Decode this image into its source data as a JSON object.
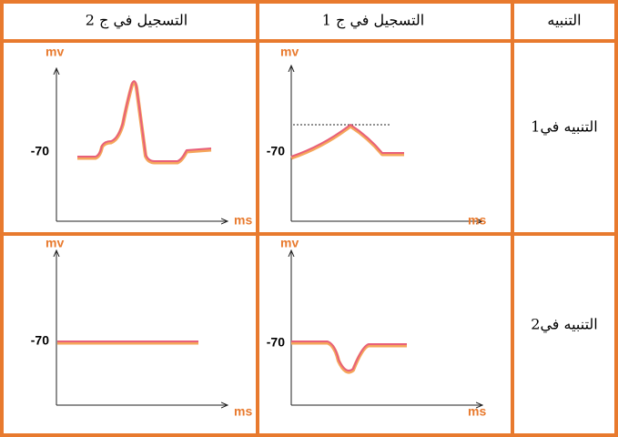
{
  "header": [
    "التسجيل في ج 2",
    "التسجيل في ج 1",
    "التنبيه"
  ],
  "rows": [
    {
      "label": "التنبيه في1",
      "graphs": [
        {
          "y_label": "mv",
          "x_label": "ms",
          "level": "-70"
        },
        {
          "y_label": "mv",
          "x_label": "ms",
          "level": "-70"
        }
      ]
    },
    {
      "label": "التنبيه في2",
      "graphs": [
        {
          "y_label": "mv",
          "x_label": "ms",
          "level": "-70"
        },
        {
          "y_label": "mv",
          "x_label": "ms",
          "level": "-70"
        }
      ]
    }
  ]
}
